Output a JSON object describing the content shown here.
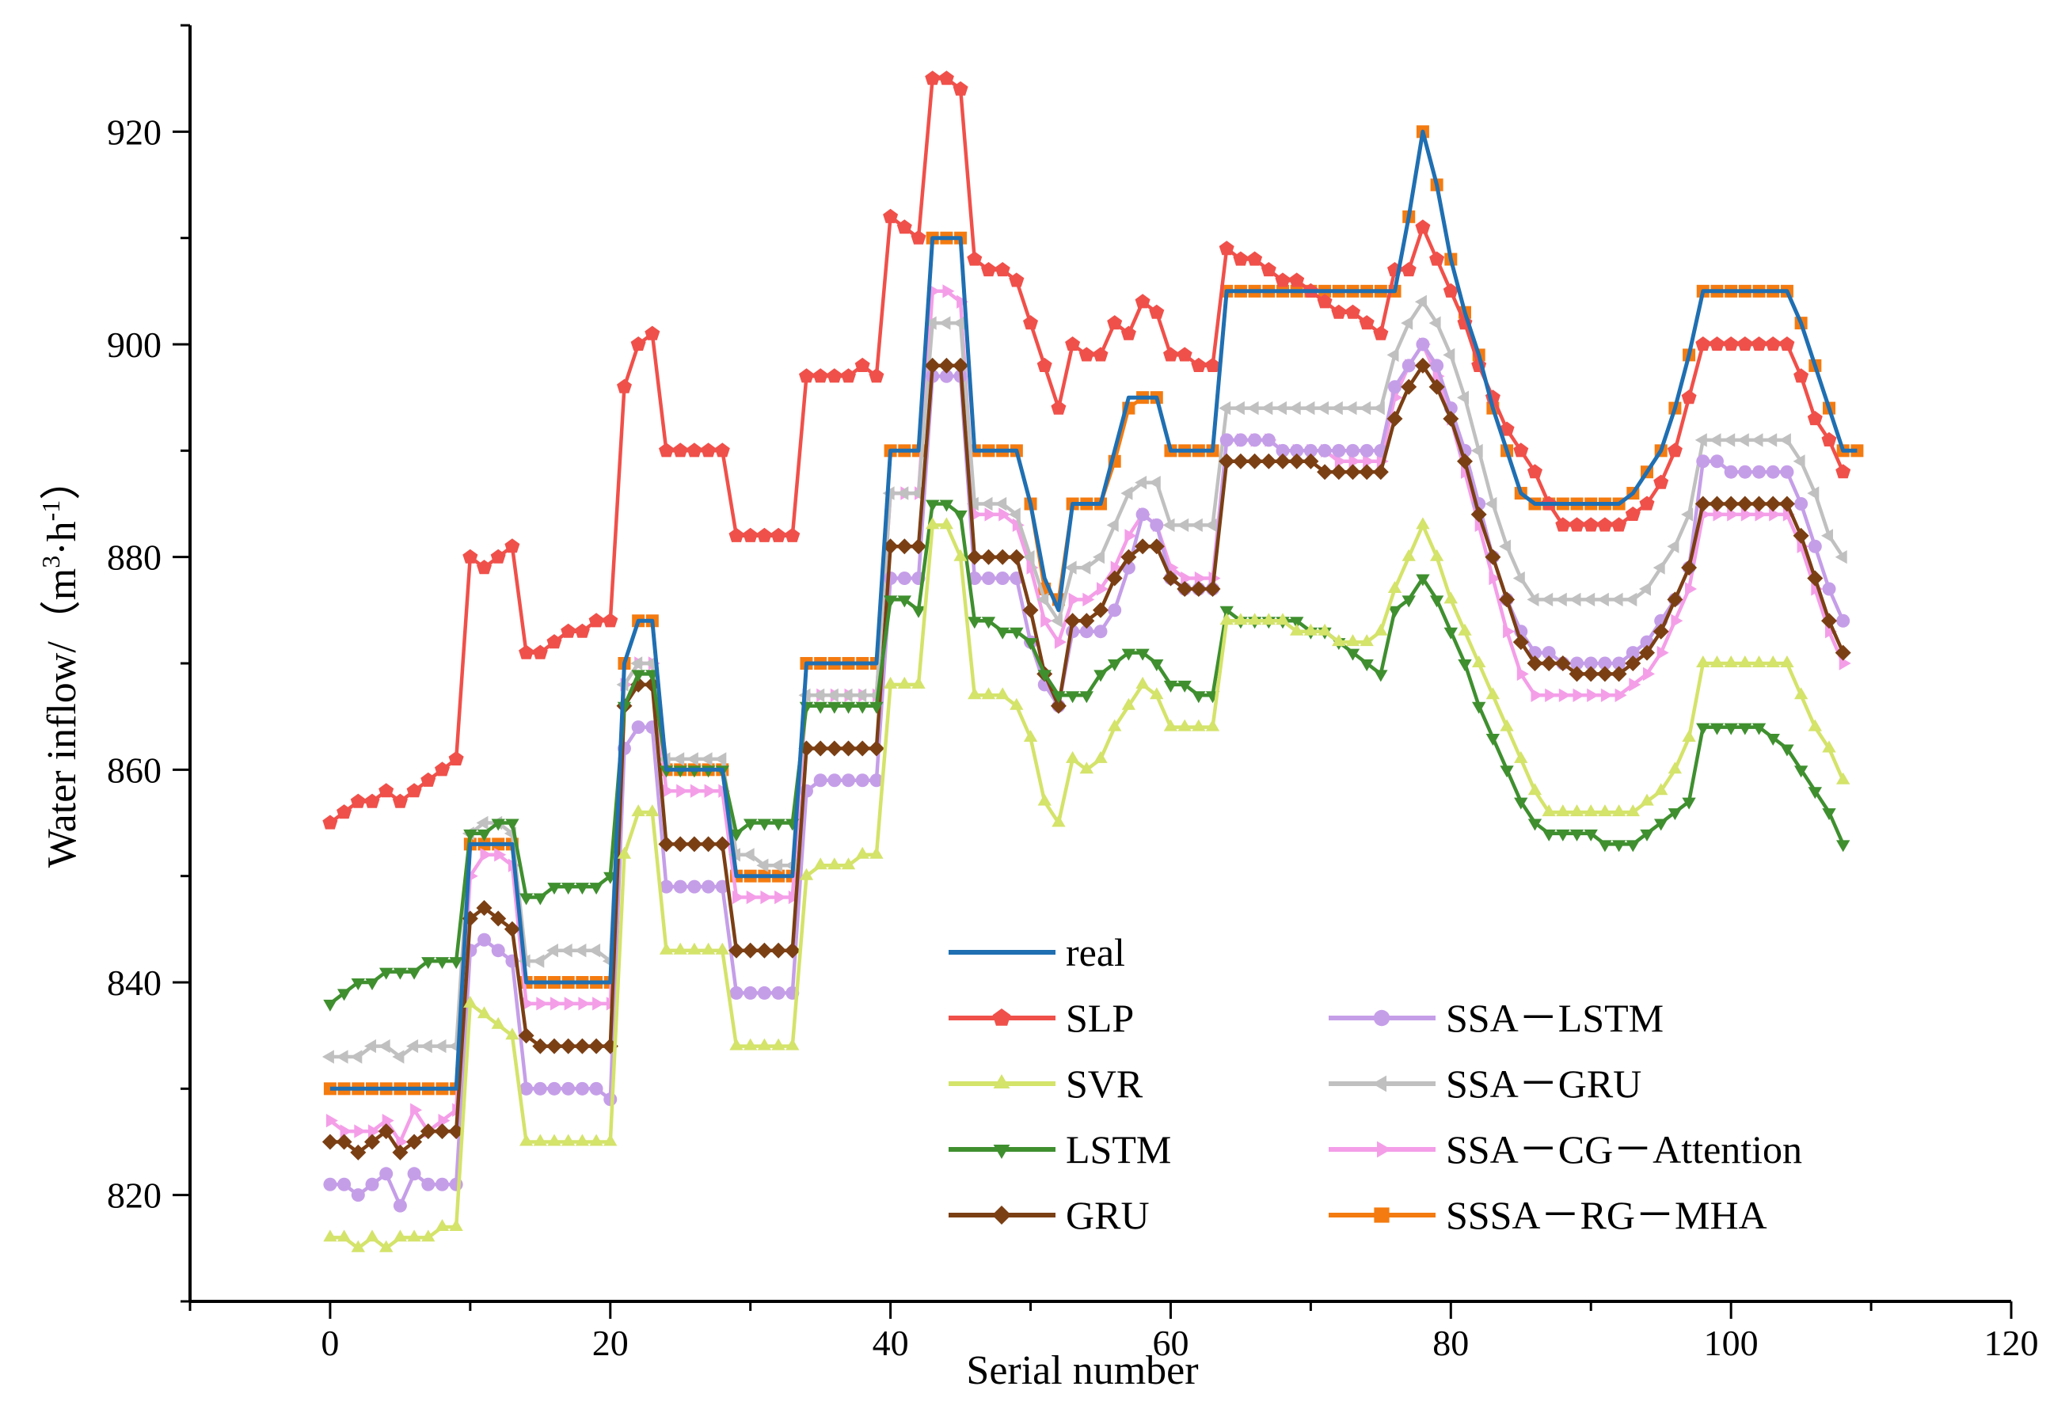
{
  "chart_data": {
    "type": "line",
    "title": "",
    "xlabel": "Serial number",
    "ylabel": "Water inflow/（m³·h⁻¹）",
    "ylabel_parts": {
      "main": "Water inflow/（m",
      "unit_sup1": "3",
      "mid": "·h",
      "unit_sup2": "-1",
      "end": "）"
    },
    "xlim": [
      -10,
      120
    ],
    "ylim": [
      810,
      930
    ],
    "xticks": [
      0,
      20,
      40,
      60,
      80,
      100,
      120
    ],
    "yticks": [
      820,
      840,
      860,
      880,
      900,
      920
    ],
    "grid": false,
    "legend_position": "lower-center",
    "series": [
      {
        "name": "real",
        "color": "#1f6fb2",
        "marker": "none",
        "values": [
          830,
          830,
          830,
          830,
          830,
          830,
          830,
          830,
          830,
          830,
          853,
          853,
          853,
          853,
          840,
          840,
          840,
          840,
          840,
          840,
          840,
          870,
          874,
          874,
          860,
          860,
          860,
          860,
          860,
          850,
          850,
          850,
          850,
          850,
          870,
          870,
          870,
          870,
          870,
          870,
          890,
          890,
          890,
          910,
          910,
          910,
          890,
          890,
          890,
          890,
          885,
          878,
          875,
          885,
          885,
          885,
          890,
          895,
          895,
          895,
          890,
          890,
          890,
          890,
          905,
          905,
          905,
          905,
          905,
          905,
          905,
          905,
          905,
          905,
          905,
          905,
          905,
          912,
          920,
          915,
          908,
          903,
          899,
          894,
          890,
          886,
          885,
          885,
          885,
          885,
          885,
          885,
          885,
          886,
          888,
          890,
          894,
          899,
          905,
          905,
          905,
          905,
          905,
          905,
          905,
          902,
          898,
          894,
          890,
          890
        ]
      },
      {
        "name": "SLP",
        "color": "#f0504a",
        "marker": "pentagon",
        "values": [
          855,
          856,
          857,
          857,
          858,
          857,
          858,
          859,
          860,
          861,
          880,
          879,
          880,
          881,
          871,
          871,
          872,
          873,
          873,
          874,
          874,
          896,
          900,
          901,
          890,
          890,
          890,
          890,
          890,
          882,
          882,
          882,
          882,
          882,
          897,
          897,
          897,
          897,
          898,
          897,
          912,
          911,
          910,
          925,
          925,
          924,
          908,
          907,
          907,
          906,
          902,
          898,
          894,
          900,
          899,
          899,
          902,
          901,
          904,
          903,
          899,
          899,
          898,
          898,
          909,
          908,
          908,
          907,
          906,
          906,
          905,
          904,
          903,
          903,
          902,
          901,
          907,
          907,
          911,
          908,
          905,
          902,
          898,
          895,
          892,
          890,
          888,
          885,
          883,
          883,
          883,
          883,
          883,
          884,
          885,
          887,
          890,
          895,
          900,
          900,
          900,
          900,
          900,
          900,
          900,
          897,
          893,
          891,
          888
        ]
      },
      {
        "name": "SVR",
        "color": "#d4e36a",
        "marker": "triangle-up",
        "values": [
          816,
          816,
          815,
          816,
          815,
          816,
          816,
          816,
          817,
          817,
          838,
          837,
          836,
          835,
          825,
          825,
          825,
          825,
          825,
          825,
          825,
          852,
          856,
          856,
          843,
          843,
          843,
          843,
          843,
          834,
          834,
          834,
          834,
          834,
          850,
          851,
          851,
          851,
          852,
          852,
          868,
          868,
          868,
          883,
          883,
          880,
          867,
          867,
          867,
          866,
          863,
          857,
          855,
          861,
          860,
          861,
          864,
          866,
          868,
          867,
          864,
          864,
          864,
          864,
          874,
          874,
          874,
          874,
          874,
          873,
          873,
          873,
          872,
          872,
          872,
          873,
          877,
          880,
          883,
          880,
          876,
          873,
          870,
          867,
          864,
          861,
          858,
          856,
          856,
          856,
          856,
          856,
          856,
          856,
          857,
          858,
          860,
          863,
          870,
          870,
          870,
          870,
          870,
          870,
          870,
          867,
          864,
          862,
          859
        ]
      },
      {
        "name": "LSTM",
        "color": "#3f8f2f",
        "marker": "triangle-down",
        "values": [
          838,
          839,
          840,
          840,
          841,
          841,
          841,
          842,
          842,
          842,
          854,
          854,
          855,
          855,
          848,
          848,
          849,
          849,
          849,
          849,
          850,
          866,
          869,
          869,
          860,
          860,
          860,
          860,
          860,
          854,
          855,
          855,
          855,
          855,
          866,
          866,
          866,
          866,
          866,
          866,
          876,
          876,
          875,
          885,
          885,
          884,
          874,
          874,
          873,
          873,
          872,
          869,
          867,
          867,
          867,
          869,
          870,
          871,
          871,
          870,
          868,
          868,
          867,
          867,
          875,
          874,
          874,
          874,
          874,
          874,
          873,
          873,
          872,
          871,
          870,
          869,
          875,
          876,
          878,
          876,
          873,
          870,
          866,
          863,
          860,
          857,
          855,
          854,
          854,
          854,
          854,
          853,
          853,
          853,
          854,
          855,
          856,
          857,
          864,
          864,
          864,
          864,
          864,
          863,
          862,
          860,
          858,
          856,
          853
        ]
      },
      {
        "name": "GRU",
        "color": "#7b3f14",
        "marker": "diamond",
        "values": [
          825,
          825,
          824,
          825,
          826,
          824,
          825,
          826,
          826,
          826,
          846,
          847,
          846,
          845,
          835,
          834,
          834,
          834,
          834,
          834,
          834,
          866,
          868,
          868,
          853,
          853,
          853,
          853,
          853,
          843,
          843,
          843,
          843,
          843,
          862,
          862,
          862,
          862,
          862,
          862,
          881,
          881,
          881,
          898,
          898,
          898,
          880,
          880,
          880,
          880,
          875,
          869,
          866,
          874,
          874,
          875,
          878,
          880,
          881,
          881,
          878,
          877,
          877,
          877,
          889,
          889,
          889,
          889,
          889,
          889,
          889,
          888,
          888,
          888,
          888,
          888,
          893,
          896,
          898,
          896,
          893,
          889,
          884,
          880,
          876,
          872,
          870,
          870,
          870,
          869,
          869,
          869,
          869,
          870,
          871,
          873,
          876,
          879,
          885,
          885,
          885,
          885,
          885,
          885,
          885,
          882,
          878,
          874,
          871
        ]
      },
      {
        "name": "SSA－LSTM",
        "color": "#c59ee8",
        "marker": "circle",
        "values": [
          821,
          821,
          820,
          821,
          822,
          819,
          822,
          821,
          821,
          821,
          843,
          844,
          843,
          842,
          830,
          830,
          830,
          830,
          830,
          830,
          829,
          862,
          864,
          864,
          849,
          849,
          849,
          849,
          849,
          839,
          839,
          839,
          839,
          839,
          858,
          859,
          859,
          859,
          859,
          859,
          878,
          878,
          878,
          897,
          897,
          897,
          878,
          878,
          878,
          878,
          872,
          868,
          866,
          873,
          873,
          873,
          875,
          879,
          884,
          883,
          878,
          877,
          877,
          877,
          891,
          891,
          891,
          891,
          890,
          890,
          890,
          890,
          890,
          890,
          890,
          890,
          896,
          898,
          900,
          898,
          894,
          890,
          885,
          880,
          876,
          873,
          871,
          871,
          870,
          870,
          870,
          870,
          870,
          871,
          872,
          874,
          876,
          879,
          889,
          889,
          888,
          888,
          888,
          888,
          888,
          885,
          881,
          877,
          874
        ]
      },
      {
        "name": "SSA－GRU",
        "color": "#c0c0c0",
        "marker": "triangle-left",
        "values": [
          833,
          833,
          833,
          834,
          834,
          833,
          834,
          834,
          834,
          834,
          854,
          855,
          855,
          854,
          842,
          842,
          843,
          843,
          843,
          843,
          842,
          868,
          870,
          870,
          861,
          861,
          861,
          861,
          861,
          852,
          852,
          851,
          851,
          851,
          867,
          867,
          867,
          867,
          867,
          867,
          886,
          886,
          886,
          902,
          902,
          902,
          885,
          885,
          885,
          884,
          880,
          876,
          874,
          879,
          879,
          880,
          883,
          886,
          887,
          887,
          883,
          883,
          883,
          883,
          894,
          894,
          894,
          894,
          894,
          894,
          894,
          894,
          894,
          894,
          894,
          894,
          899,
          902,
          904,
          902,
          899,
          895,
          890,
          885,
          881,
          878,
          876,
          876,
          876,
          876,
          876,
          876,
          876,
          876,
          877,
          879,
          881,
          884,
          891,
          891,
          891,
          891,
          891,
          891,
          891,
          889,
          886,
          882,
          880
        ]
      },
      {
        "name": "SSA－CG－Attention",
        "color": "#f49ee8",
        "marker": "triangle-right",
        "values": [
          827,
          826,
          826,
          826,
          827,
          825,
          828,
          826,
          827,
          828,
          850,
          852,
          852,
          851,
          838,
          838,
          838,
          838,
          838,
          838,
          838,
          868,
          870,
          870,
          858,
          858,
          858,
          858,
          858,
          848,
          848,
          848,
          848,
          848,
          867,
          867,
          867,
          867,
          867,
          867,
          886,
          886,
          886,
          905,
          905,
          904,
          884,
          884,
          884,
          883,
          879,
          874,
          872,
          876,
          876,
          877,
          879,
          882,
          884,
          883,
          879,
          878,
          878,
          878,
          891,
          891,
          891,
          891,
          890,
          890,
          890,
          890,
          889,
          889,
          889,
          889,
          895,
          898,
          900,
          897,
          893,
          888,
          883,
          878,
          873,
          869,
          867,
          867,
          867,
          867,
          867,
          867,
          867,
          868,
          869,
          871,
          874,
          877,
          884,
          884,
          884,
          884,
          884,
          884,
          884,
          881,
          877,
          873,
          870
        ]
      },
      {
        "name": "SSSA－RG－MHA",
        "color": "#f47b10",
        "marker": "square",
        "values": [
          830,
          830,
          830,
          830,
          830,
          830,
          830,
          830,
          830,
          830,
          853,
          853,
          853,
          853,
          840,
          840,
          840,
          840,
          840,
          840,
          840,
          870,
          874,
          874,
          860,
          860,
          860,
          860,
          860,
          850,
          850,
          850,
          850,
          850,
          870,
          870,
          870,
          870,
          870,
          870,
          890,
          890,
          890,
          910,
          910,
          910,
          890,
          890,
          890,
          890,
          885,
          877,
          876,
          885,
          885,
          885,
          889,
          894,
          895,
          895,
          890,
          890,
          890,
          890,
          905,
          905,
          905,
          905,
          905,
          905,
          905,
          905,
          905,
          905,
          905,
          905,
          905,
          912,
          920,
          915,
          908,
          903,
          899,
          894,
          890,
          886,
          885,
          885,
          885,
          885,
          885,
          885,
          885,
          886,
          888,
          890,
          894,
          899,
          905,
          905,
          905,
          905,
          905,
          905,
          905,
          902,
          898,
          894,
          890,
          890
        ]
      }
    ]
  }
}
